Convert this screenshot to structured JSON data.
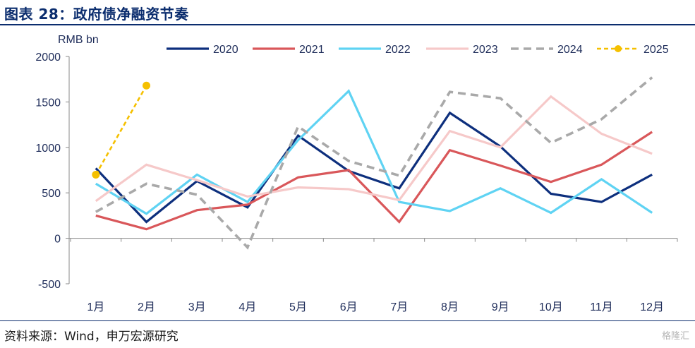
{
  "page": {
    "title": "图表 28：政府债净融资节奏",
    "source": "资料来源：Wind，申万宏源研究",
    "watermark": "格隆汇"
  },
  "chart_data": {
    "type": "line",
    "title": "",
    "ylabel": "RMB bn",
    "xlabel": "",
    "ylim": [
      -500,
      2000
    ],
    "yticks": [
      -500,
      0,
      500,
      1000,
      1500,
      2000
    ],
    "categories": [
      "1月",
      "2月",
      "3月",
      "4月",
      "5月",
      "6月",
      "7月",
      "8月",
      "9月",
      "10月",
      "11月",
      "12月"
    ],
    "legend_position": "top",
    "grid": false,
    "series": [
      {
        "name": "2020",
        "color": "#0d2f7d",
        "dash": "solid",
        "values": [
          770,
          180,
          630,
          340,
          1130,
          740,
          550,
          1380,
          1010,
          490,
          400,
          700
        ]
      },
      {
        "name": "2021",
        "color": "#d9575a",
        "dash": "solid",
        "values": [
          250,
          100,
          310,
          370,
          670,
          750,
          180,
          970,
          800,
          620,
          810,
          1170
        ]
      },
      {
        "name": "2022",
        "color": "#5fd3f3",
        "dash": "solid",
        "values": [
          600,
          270,
          700,
          400,
          1080,
          1620,
          400,
          300,
          550,
          280,
          650,
          280
        ]
      },
      {
        "name": "2023",
        "color": "#f6c9c9",
        "dash": "solid",
        "values": [
          410,
          810,
          640,
          460,
          560,
          540,
          420,
          1180,
          1000,
          1560,
          1150,
          930
        ]
      },
      {
        "name": "2024",
        "color": "#a9a9a9",
        "dash": "dash",
        "values": [
          290,
          600,
          480,
          -100,
          1230,
          850,
          690,
          1610,
          1540,
          1050,
          1310,
          1770
        ]
      },
      {
        "name": "2025",
        "color": "#f5c000",
        "dash": "dot-marker",
        "values": [
          700,
          1680,
          null,
          null,
          null,
          null,
          null,
          null,
          null,
          null,
          null,
          null
        ]
      }
    ]
  }
}
